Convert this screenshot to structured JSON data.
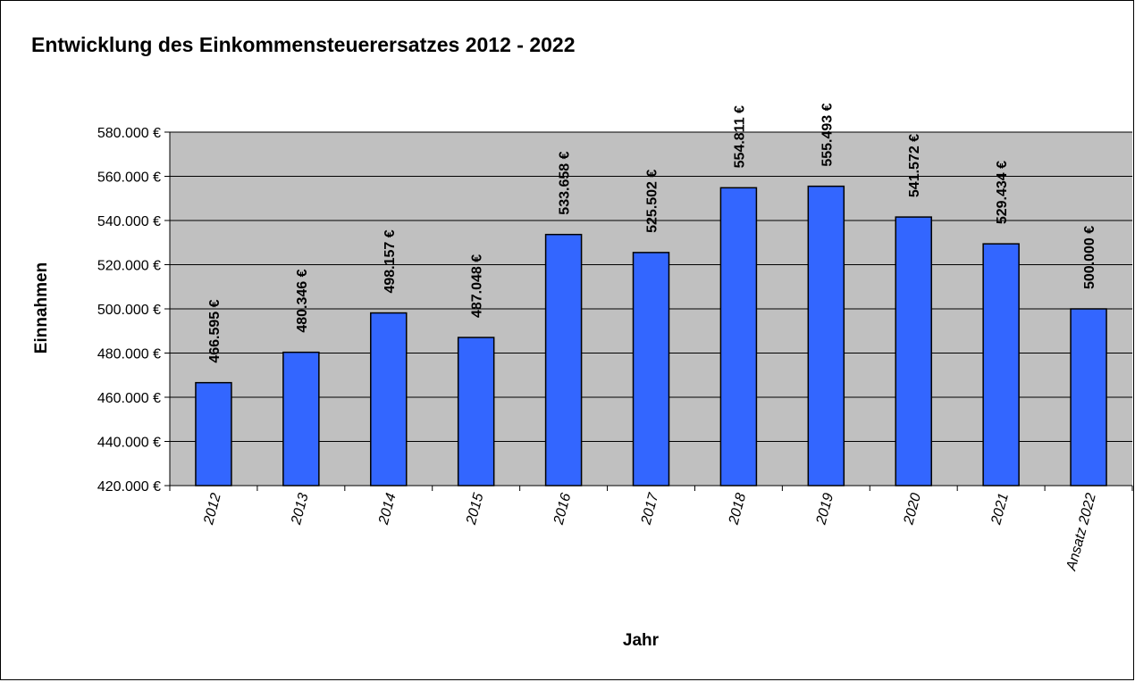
{
  "chart_data": {
    "type": "bar",
    "title": "Entwicklung des Einkommensteuerersatzes 2012 - 2022",
    "xlabel": "Jahr",
    "ylabel": "Einnahmen",
    "categories": [
      "2012",
      "2013",
      "2014",
      "2015",
      "2016",
      "2017",
      "2018",
      "2019",
      "2020",
      "2021",
      "Ansatz 2022"
    ],
    "values": [
      466595,
      480346,
      498157,
      487048,
      533658,
      525502,
      554811,
      555493,
      541572,
      529434,
      500000
    ],
    "data_labels": [
      "466.595 €",
      "480.346 €",
      "498.157 €",
      "487.048 €",
      "533.658 €",
      "525.502 €",
      "554.811 €",
      "555.493 €",
      "541.572 €",
      "529.434 €",
      "500.000 €"
    ],
    "ylim": [
      420000,
      580000
    ],
    "yticks": [
      420000,
      440000,
      460000,
      480000,
      500000,
      520000,
      540000,
      560000,
      580000
    ],
    "ytick_labels": [
      "420.000 €",
      "440.000 €",
      "460.000 €",
      "480.000 €",
      "500.000 €",
      "520.000 €",
      "540.000 €",
      "560.000 €",
      "580.000 €"
    ],
    "grid": true,
    "legend": "none",
    "colors": {
      "bar": "#3366FF",
      "plot_background": "#C0C0C0",
      "gridline": "#000000",
      "bar_outline": "#000000"
    }
  }
}
